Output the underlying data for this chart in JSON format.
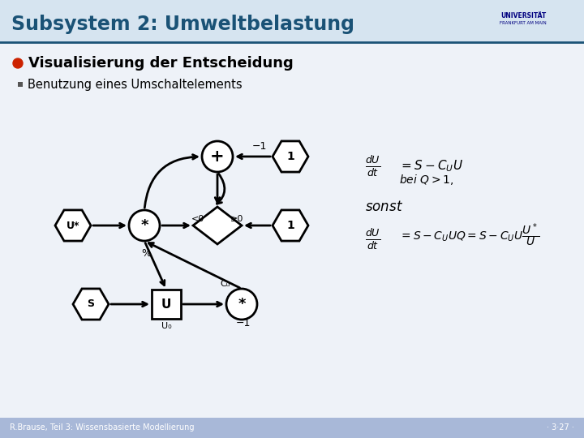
{
  "title": "Subsystem 2: Umweltbelastung",
  "title_color": "#1a5276",
  "title_bg": "#d6e4f0",
  "subtitle": "Visualisierung der Entscheidung",
  "bullet": "Benutzung eines Umschaltelements",
  "bg_color": "#eef2f8",
  "footer_bg": "#a8b8d8",
  "footer_text": "R.Brause, Teil 3: Wissensbasierte Modellierung",
  "footer_page": "· 3·27 ·",
  "line_color": "#1a5276",
  "diagram_color": "#000000",
  "node_bg": "#ffffff"
}
